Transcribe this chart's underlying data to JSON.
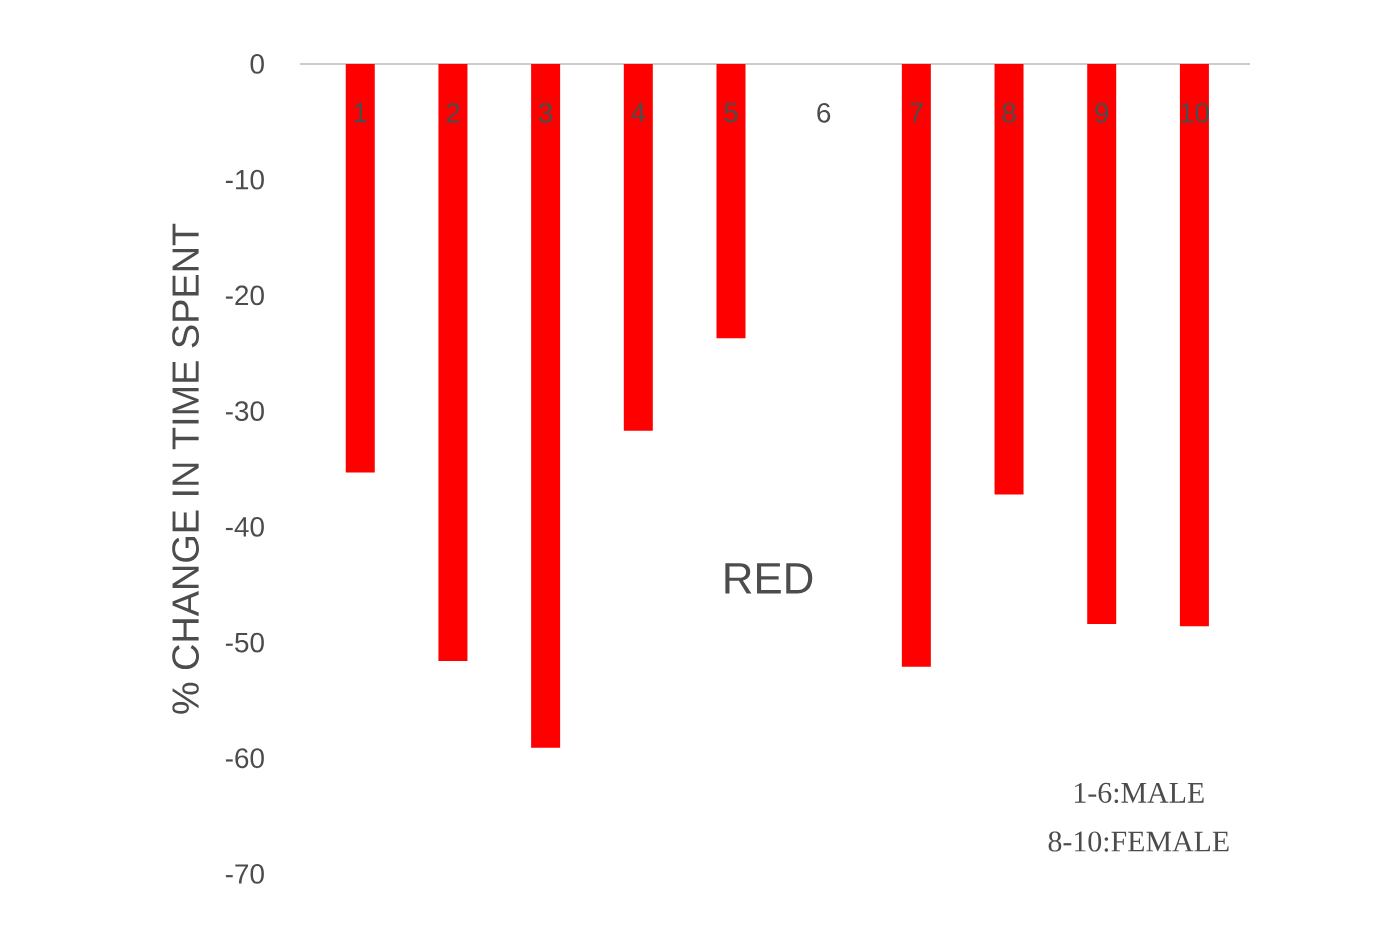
{
  "chart_data": {
    "type": "bar",
    "ylabel": "% CHANGE  IN TIME SPENT",
    "categories": [
      "1",
      "2",
      "3",
      "4",
      "5",
      "6",
      "7",
      "8",
      "9",
      "10"
    ],
    "values": [
      -35.3,
      -51.6,
      -59.1,
      -31.7,
      -23.7,
      0,
      -52.1,
      -37.2,
      -48.4,
      -48.6
    ],
    "color": "#ff0000",
    "ylim": [
      -70,
      0
    ],
    "yticks": [
      -70,
      -60,
      -50,
      -40,
      -30,
      -20,
      -10,
      0
    ],
    "annotations": [
      "RED",
      "1-6:MALE",
      "8-10:FEMALE"
    ]
  }
}
